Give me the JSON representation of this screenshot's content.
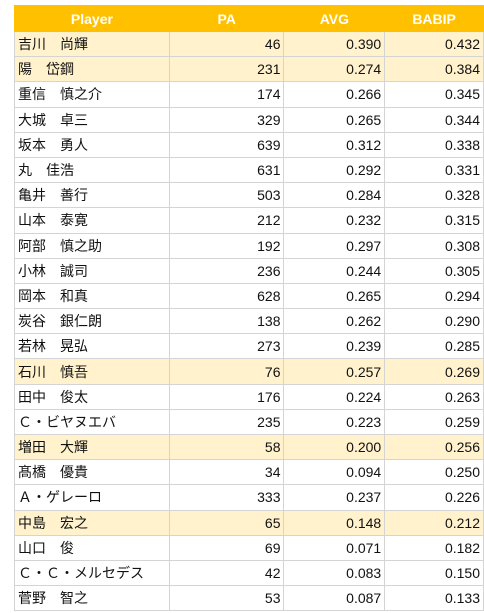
{
  "columns": [
    "Player",
    "PA",
    "AVG",
    "BABIP"
  ],
  "rows": [
    {
      "player": "吉川　尚輝",
      "pa": "46",
      "avg": "0.390",
      "babip": "0.432",
      "highlight": true
    },
    {
      "player": "陽　岱鋼",
      "pa": "231",
      "avg": "0.274",
      "babip": "0.384",
      "highlight": true
    },
    {
      "player": "重信　慎之介",
      "pa": "174",
      "avg": "0.266",
      "babip": "0.345",
      "highlight": false
    },
    {
      "player": "大城　卓三",
      "pa": "329",
      "avg": "0.265",
      "babip": "0.344",
      "highlight": false
    },
    {
      "player": "坂本　勇人",
      "pa": "639",
      "avg": "0.312",
      "babip": "0.338",
      "highlight": false
    },
    {
      "player": "丸　佳浩",
      "pa": "631",
      "avg": "0.292",
      "babip": "0.331",
      "highlight": false
    },
    {
      "player": "亀井　善行",
      "pa": "503",
      "avg": "0.284",
      "babip": "0.328",
      "highlight": false
    },
    {
      "player": "山本　泰寛",
      "pa": "212",
      "avg": "0.232",
      "babip": "0.315",
      "highlight": false
    },
    {
      "player": "阿部　慎之助",
      "pa": "192",
      "avg": "0.297",
      "babip": "0.308",
      "highlight": false
    },
    {
      "player": "小林　誠司",
      "pa": "236",
      "avg": "0.244",
      "babip": "0.305",
      "highlight": false
    },
    {
      "player": "岡本　和真",
      "pa": "628",
      "avg": "0.265",
      "babip": "0.294",
      "highlight": false
    },
    {
      "player": "炭谷　銀仁朗",
      "pa": "138",
      "avg": "0.262",
      "babip": "0.290",
      "highlight": false
    },
    {
      "player": "若林　晃弘",
      "pa": "273",
      "avg": "0.239",
      "babip": "0.285",
      "highlight": false
    },
    {
      "player": "石川　慎吾",
      "pa": "76",
      "avg": "0.257",
      "babip": "0.269",
      "highlight": true
    },
    {
      "player": "田中　俊太",
      "pa": "176",
      "avg": "0.224",
      "babip": "0.263",
      "highlight": false
    },
    {
      "player": "Ｃ・ビヤヌエバ",
      "pa": "235",
      "avg": "0.223",
      "babip": "0.259",
      "highlight": false
    },
    {
      "player": "増田　大輝",
      "pa": "58",
      "avg": "0.200",
      "babip": "0.256",
      "highlight": true
    },
    {
      "player": "髙橋　優貴",
      "pa": "34",
      "avg": "0.094",
      "babip": "0.250",
      "highlight": false
    },
    {
      "player": "Ａ・ゲレーロ",
      "pa": "333",
      "avg": "0.237",
      "babip": "0.226",
      "highlight": false
    },
    {
      "player": "中島　宏之",
      "pa": "65",
      "avg": "0.148",
      "babip": "0.212",
      "highlight": true
    },
    {
      "player": "山口　俊",
      "pa": "69",
      "avg": "0.071",
      "babip": "0.182",
      "highlight": false
    },
    {
      "player": "Ｃ・Ｃ・メルセデス",
      "pa": "42",
      "avg": "0.083",
      "babip": "0.150",
      "highlight": false
    },
    {
      "player": "菅野　智之",
      "pa": "53",
      "avg": "0.087",
      "babip": "0.133",
      "highlight": false
    }
  ],
  "colors": {
    "header_bg": "#ffc000",
    "header_text": "#ffffff",
    "highlight_row_bg": "#fff2cc",
    "grid_line": "#d4d4d4"
  }
}
